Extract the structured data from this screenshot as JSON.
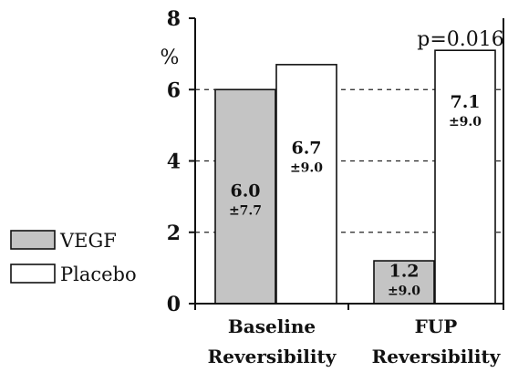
{
  "chart_data": {
    "type": "bar",
    "unit_label": "%",
    "ylim": [
      0,
      8
    ],
    "yticks": [
      0,
      2,
      4,
      6,
      8
    ],
    "grid": "dashed horizontal at 2, 4, 6",
    "categories": [
      [
        "Baseline",
        "Reversibility"
      ],
      [
        "FUP",
        "Reversibility"
      ]
    ],
    "series": [
      {
        "name": "VEGF",
        "color": "#c4c4c4",
        "values": [
          6.0,
          1.2
        ],
        "value_labels": [
          "6.0",
          "1.2"
        ],
        "sd_labels": [
          "±7.7",
          "±9.0"
        ]
      },
      {
        "name": "Placebo",
        "color": "#ffffff",
        "values": [
          6.7,
          7.1
        ],
        "value_labels": [
          "6.7",
          "7.1"
        ],
        "sd_labels": [
          "±9.0",
          "±9.0"
        ]
      }
    ],
    "annotation": "p=0.016",
    "legend_position": "left"
  }
}
